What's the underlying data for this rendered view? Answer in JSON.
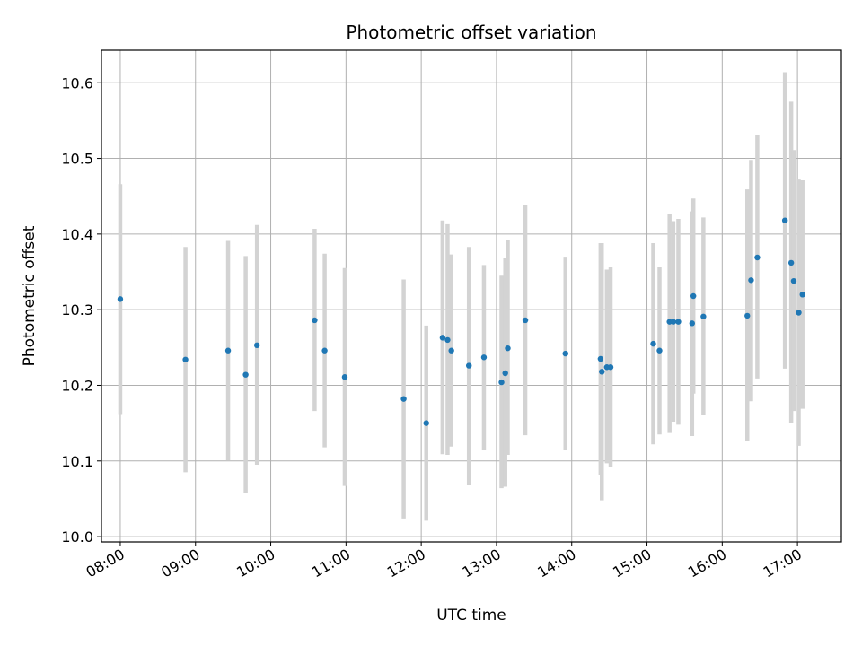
{
  "chart_data": {
    "type": "scatter",
    "title": "Photometric offset variation",
    "xlabel": "UTC time",
    "ylabel": "Photometric offset",
    "x_ticks": [
      {
        "label": "08:00",
        "hour": 8
      },
      {
        "label": "09:00",
        "hour": 9
      },
      {
        "label": "10:00",
        "hour": 10
      },
      {
        "label": "11:00",
        "hour": 11
      },
      {
        "label": "12:00",
        "hour": 12
      },
      {
        "label": "13:00",
        "hour": 13
      },
      {
        "label": "14:00",
        "hour": 14
      },
      {
        "label": "15:00",
        "hour": 15
      },
      {
        "label": "16:00",
        "hour": 16
      },
      {
        "label": "17:00",
        "hour": 17
      }
    ],
    "y_ticks": [
      10.0,
      10.1,
      10.2,
      10.3,
      10.4,
      10.5,
      10.6
    ],
    "xlim": [
      "07:45",
      "17:35"
    ],
    "ylim": [
      9.993,
      10.643
    ],
    "grid": true,
    "point_color": "#1f77b4",
    "errorbar_color": "#d3d3d3",
    "points": [
      {
        "time": "08:00",
        "y": 10.314,
        "lo": 10.162,
        "hi": 10.466
      },
      {
        "time": "08:52",
        "y": 10.234,
        "lo": 10.085,
        "hi": 10.383
      },
      {
        "time": "09:26",
        "y": 10.246,
        "lo": 10.101,
        "hi": 10.391
      },
      {
        "time": "09:40",
        "y": 10.214,
        "lo": 10.058,
        "hi": 10.371
      },
      {
        "time": "09:49",
        "y": 10.253,
        "lo": 10.095,
        "hi": 10.412
      },
      {
        "time": "10:35",
        "y": 10.286,
        "lo": 10.166,
        "hi": 10.407
      },
      {
        "time": "10:43",
        "y": 10.246,
        "lo": 10.118,
        "hi": 10.374
      },
      {
        "time": "10:59",
        "y": 10.211,
        "lo": 10.067,
        "hi": 10.355
      },
      {
        "time": "11:46",
        "y": 10.182,
        "lo": 10.024,
        "hi": 10.34
      },
      {
        "time": "12:04",
        "y": 10.15,
        "lo": 10.021,
        "hi": 10.279
      },
      {
        "time": "12:17",
        "y": 10.263,
        "lo": 10.109,
        "hi": 10.418
      },
      {
        "time": "12:21",
        "y": 10.26,
        "lo": 10.108,
        "hi": 10.413
      },
      {
        "time": "12:24",
        "y": 10.246,
        "lo": 10.119,
        "hi": 10.373
      },
      {
        "time": "12:38",
        "y": 10.226,
        "lo": 10.068,
        "hi": 10.383
      },
      {
        "time": "12:50",
        "y": 10.237,
        "lo": 10.115,
        "hi": 10.359
      },
      {
        "time": "13:04",
        "y": 10.204,
        "lo": 10.064,
        "hi": 10.345
      },
      {
        "time": "13:07",
        "y": 10.216,
        "lo": 10.066,
        "hi": 10.369
      },
      {
        "time": "13:09",
        "y": 10.249,
        "lo": 10.108,
        "hi": 10.392
      },
      {
        "time": "13:23",
        "y": 10.286,
        "lo": 10.134,
        "hi": 10.438
      },
      {
        "time": "13:55",
        "y": 10.242,
        "lo": 10.114,
        "hi": 10.37
      },
      {
        "time": "14:23",
        "y": 10.235,
        "lo": 10.082,
        "hi": 10.388
      },
      {
        "time": "14:24",
        "y": 10.218,
        "lo": 10.048,
        "hi": 10.388
      },
      {
        "time": "14:28",
        "y": 10.224,
        "lo": 10.097,
        "hi": 10.353
      },
      {
        "time": "14:31",
        "y": 10.224,
        "lo": 10.092,
        "hi": 10.356
      },
      {
        "time": "15:05",
        "y": 10.255,
        "lo": 10.122,
        "hi": 10.388
      },
      {
        "time": "15:10",
        "y": 10.246,
        "lo": 10.135,
        "hi": 10.356
      },
      {
        "time": "15:18",
        "y": 10.284,
        "lo": 10.137,
        "hi": 10.427
      },
      {
        "time": "15:21",
        "y": 10.284,
        "lo": 10.152,
        "hi": 10.417
      },
      {
        "time": "15:25",
        "y": 10.284,
        "lo": 10.148,
        "hi": 10.42
      },
      {
        "time": "15:36",
        "y": 10.282,
        "lo": 10.133,
        "hi": 10.43
      },
      {
        "time": "15:37",
        "y": 10.318,
        "lo": 10.189,
        "hi": 10.447
      },
      {
        "time": "15:45",
        "y": 10.291,
        "lo": 10.161,
        "hi": 10.422
      },
      {
        "time": "16:20",
        "y": 10.292,
        "lo": 10.126,
        "hi": 10.459
      },
      {
        "time": "16:23",
        "y": 10.339,
        "lo": 10.179,
        "hi": 10.498
      },
      {
        "time": "16:28",
        "y": 10.369,
        "lo": 10.209,
        "hi": 10.531
      },
      {
        "time": "16:50",
        "y": 10.418,
        "lo": 10.222,
        "hi": 10.614
      },
      {
        "time": "16:55",
        "y": 10.362,
        "lo": 10.15,
        "hi": 10.575
      },
      {
        "time": "16:57",
        "y": 10.338,
        "lo": 10.166,
        "hi": 10.511
      },
      {
        "time": "17:01",
        "y": 10.296,
        "lo": 10.12,
        "hi": 10.472
      },
      {
        "time": "17:04",
        "y": 10.32,
        "lo": 10.169,
        "hi": 10.471
      }
    ]
  }
}
